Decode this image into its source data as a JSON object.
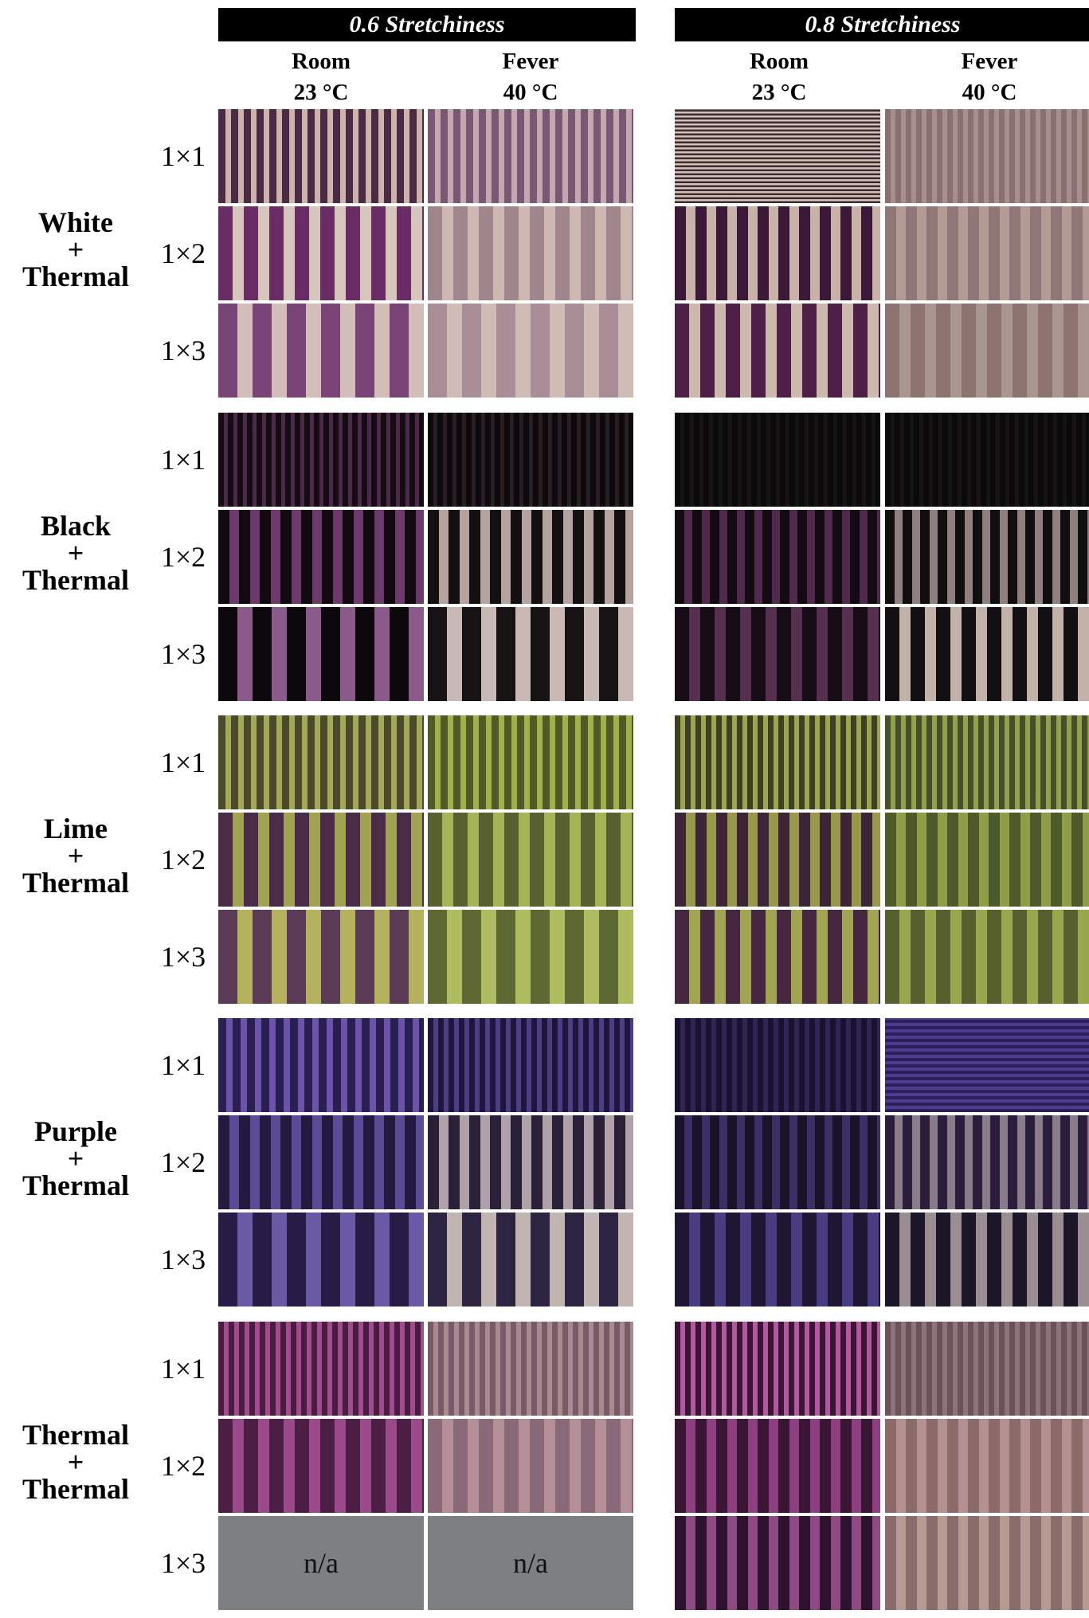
{
  "headers": {
    "left_title": "0.6 Stretchiness",
    "right_title": "0.8 Stretchiness",
    "columns": [
      {
        "line1": "Room",
        "line2": "23 °C"
      },
      {
        "line1": "Fever",
        "line2": "40 °C"
      },
      {
        "line1": "Room",
        "line2": "23 °C"
      },
      {
        "line1": "Fever",
        "line2": "40 °C"
      }
    ]
  },
  "groups": [
    {
      "line1": "White",
      "line2": "+",
      "line3": "Thermal",
      "rows": [
        "1×1",
        "1×2",
        "1×3"
      ],
      "swatches": [
        [
          {
            "base": "#4a2a44",
            "stripe": "#cdb3ae",
            "dir": "v",
            "n": 16
          },
          {
            "base": "#7a5773",
            "stripe": "#c6a6b0",
            "dir": "v",
            "n": 16
          },
          {
            "base": "#3a2a34",
            "stripe": "#d7c1b4",
            "dir": "h",
            "n": 22
          },
          {
            "base": "#8a7070",
            "stripe": "#a7908b",
            "dir": "v",
            "n": 20
          }
        ],
        [
          {
            "base": "#6a2c66",
            "stripe": "#d7c6bb",
            "dir": "v",
            "n": 8
          },
          {
            "base": "#a0858c",
            "stripe": "#cdb9b2",
            "dir": "v",
            "n": 8
          },
          {
            "base": "#3c1838",
            "stripe": "#c9b3a9",
            "dir": "v",
            "n": 10
          },
          {
            "base": "#8f7778",
            "stripe": "#b29a95",
            "dir": "v",
            "n": 10
          }
        ],
        [
          {
            "base": "#7a4576",
            "stripe": "#d2bdb9",
            "dir": "v",
            "n": 6
          },
          {
            "base": "#a98e97",
            "stripe": "#cfbcb6",
            "dir": "v",
            "n": 6
          },
          {
            "base": "#4e2048",
            "stripe": "#cdb8b0",
            "dir": "v",
            "n": 8
          },
          {
            "base": "#8c7271",
            "stripe": "#ab9590",
            "dir": "v",
            "n": 8
          }
        ]
      ]
    },
    {
      "line1": "Black",
      "line2": "+",
      "line3": "Thermal",
      "rows": [
        "1×1",
        "1×2",
        "1×3"
      ],
      "swatches": [
        [
          {
            "base": "#140c12",
            "stripe": "#4a2a48",
            "dir": "v",
            "n": 22
          },
          {
            "base": "#0d0a0c",
            "stripe": "#2a1e26",
            "dir": "v",
            "n": 22
          },
          {
            "base": "#0b0a0b",
            "stripe": "#161216",
            "dir": "v",
            "n": 22
          },
          {
            "base": "#0b0a0b",
            "stripe": "#161216",
            "dir": "v",
            "n": 22
          }
        ],
        [
          {
            "base": "#120810",
            "stripe": "#6b3a6a",
            "dir": "v",
            "n": 10
          },
          {
            "base": "#141012",
            "stripe": "#b5a3a0",
            "dir": "v",
            "n": 10
          },
          {
            "base": "#130a12",
            "stripe": "#4f2a4d",
            "dir": "v",
            "n": 12
          },
          {
            "base": "#110e10",
            "stripe": "#8f7f7e",
            "dir": "v",
            "n": 12
          }
        ],
        [
          {
            "base": "#0d080c",
            "stripe": "#8a5a8a",
            "dir": "v",
            "n": 6
          },
          {
            "base": "#171214",
            "stripe": "#c9b9b4",
            "dir": "v",
            "n": 6
          },
          {
            "base": "#170c16",
            "stripe": "#56304f",
            "dir": "v",
            "n": 8
          },
          {
            "base": "#121012",
            "stripe": "#c2b2aa",
            "dir": "v",
            "n": 8
          }
        ]
      ]
    },
    {
      "line1": "Lime",
      "line2": "+",
      "line3": "Thermal",
      "rows": [
        "1×1",
        "1×2",
        "1×3"
      ],
      "swatches": [
        [
          {
            "base": "#4d4a2a",
            "stripe": "#a3a75a",
            "dir": "v",
            "n": 16
          },
          {
            "base": "#4f5a26",
            "stripe": "#9fb04c",
            "dir": "v",
            "n": 16
          },
          {
            "base": "#3e4022",
            "stripe": "#9da453",
            "dir": "v",
            "n": 20
          },
          {
            "base": "#465028",
            "stripe": "#90a04e",
            "dir": "v",
            "n": 20
          }
        ],
        [
          {
            "base": "#4a2c48",
            "stripe": "#9fa352",
            "dir": "v",
            "n": 8
          },
          {
            "base": "#57602f",
            "stripe": "#a6b458",
            "dir": "v",
            "n": 8
          },
          {
            "base": "#3d2436",
            "stripe": "#97984c",
            "dir": "v",
            "n": 10
          },
          {
            "base": "#4f5a2a",
            "stripe": "#8f9c48",
            "dir": "v",
            "n": 10
          }
        ],
        [
          {
            "base": "#5a3a54",
            "stripe": "#b4b25e",
            "dir": "v",
            "n": 6
          },
          {
            "base": "#5d6832",
            "stripe": "#b0bc60",
            "dir": "v",
            "n": 6
          },
          {
            "base": "#45283f",
            "stripe": "#a1a553",
            "dir": "v",
            "n": 8
          },
          {
            "base": "#56602e",
            "stripe": "#98a64e",
            "dir": "v",
            "n": 8
          }
        ]
      ]
    },
    {
      "line1": "Purple",
      "line2": "+",
      "line3": "Thermal",
      "rows": [
        "1×1",
        "1×2",
        "1×3"
      ],
      "swatches": [
        [
          {
            "base": "#2a1f52",
            "stripe": "#6a53a8",
            "dir": "v",
            "n": 14
          },
          {
            "base": "#1e163e",
            "stripe": "#4d3d82",
            "dir": "v",
            "n": 20
          },
          {
            "base": "#1a1230",
            "stripe": "#2f2454",
            "dir": "v",
            "n": 20
          },
          {
            "base": "#2a1f58",
            "stripe": "#4c3b8e",
            "dir": "h",
            "n": 14
          }
        ],
        [
          {
            "base": "#221a40",
            "stripe": "#5b4a96",
            "dir": "v",
            "n": 10
          },
          {
            "base": "#2a2038",
            "stripe": "#b0a0a8",
            "dir": "v",
            "n": 10
          },
          {
            "base": "#1a1228",
            "stripe": "#3b2f66",
            "dir": "v",
            "n": 12
          },
          {
            "base": "#2a1e3c",
            "stripe": "#8a7c88",
            "dir": "v",
            "n": 12
          }
        ],
        [
          {
            "base": "#281c46",
            "stripe": "#6a5aa6",
            "dir": "v",
            "n": 6
          },
          {
            "base": "#2c2440",
            "stripe": "#c2b4b0",
            "dir": "v",
            "n": 6
          },
          {
            "base": "#1e1632",
            "stripe": "#4a3c82",
            "dir": "v",
            "n": 8
          },
          {
            "base": "#1c1628",
            "stripe": "#9a8e92",
            "dir": "v",
            "n": 8
          }
        ]
      ]
    },
    {
      "line1": "Thermal",
      "line2": "+",
      "line3": "Thermal",
      "rows": [
        "1×1",
        "1×2",
        "1×3"
      ],
      "swatches": [
        [
          {
            "base": "#4a1c42",
            "stripe": "#a14c8e",
            "dir": "v",
            "n": 20
          },
          {
            "base": "#7a5a66",
            "stripe": "#a88a90",
            "dir": "v",
            "n": 20
          },
          {
            "base": "#3e1436",
            "stripe": "#b25aa0",
            "dir": "v",
            "n": 20
          },
          {
            "base": "#6a5258",
            "stripe": "#8d7478",
            "dir": "v",
            "n": 20
          }
        ],
        [
          {
            "base": "#4c1e44",
            "stripe": "#9a4a88",
            "dir": "v",
            "n": 8
          },
          {
            "base": "#8a6a78",
            "stripe": "#b48f98",
            "dir": "v",
            "n": 8
          },
          {
            "base": "#3a1634",
            "stripe": "#8e3f80",
            "dir": "v",
            "n": 10
          },
          {
            "base": "#8c6a6a",
            "stripe": "#b59092",
            "dir": "v",
            "n": 10
          }
        ],
        [
          {
            "na": "n/a"
          },
          {
            "na": "n/a"
          },
          {
            "base": "#2e1230",
            "stripe": "#8e4a82",
            "dir": "v",
            "n": 10
          },
          {
            "base": "#8a6c6c",
            "stripe": "#b79a92",
            "dir": "v",
            "n": 10
          }
        ]
      ]
    }
  ]
}
